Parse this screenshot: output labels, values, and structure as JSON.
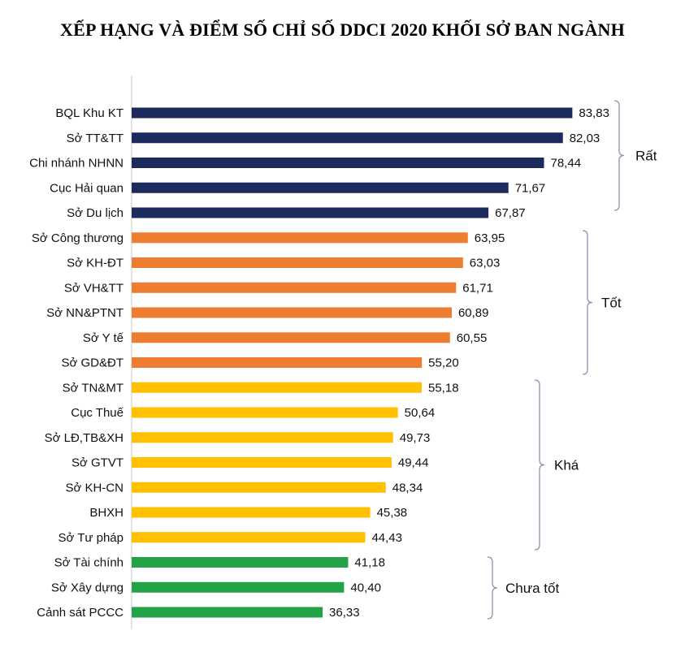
{
  "chart_data": {
    "type": "bar",
    "orientation": "horizontal",
    "title": "XẾP HẠNG VÀ ĐIỂM SỐ CHỈ SỐ DDCI 2020 KHỐI SỞ BAN NGÀNH",
    "xlim": [
      0,
      90
    ],
    "categories": [
      "BQL Khu KT",
      "Sở TT&TT",
      "Chi nhánh NHNN",
      "Cục Hải quan",
      "Sở Du lịch",
      "Sở Công thương",
      "Sở KH-ĐT",
      "Sở VH&TT",
      "Sở NN&PTNT",
      "Sở Y tế",
      "Sở GD&ĐT",
      "Sở TN&MT",
      "Cục Thuế",
      "Sở LĐ,TB&XH",
      "Sở GTVT",
      "Sở KH-CN",
      "BHXH",
      "Sở Tư pháp",
      "Sở Tài chính",
      "Sở Xây dựng",
      "Cảnh sát PCCC"
    ],
    "values": [
      83.83,
      82.03,
      78.44,
      71.67,
      67.87,
      63.95,
      63.03,
      61.71,
      60.89,
      60.55,
      55.2,
      55.18,
      50.64,
      49.73,
      49.44,
      48.34,
      45.38,
      44.43,
      41.18,
      40.4,
      36.33
    ],
    "value_labels": [
      "83,83",
      "82,03",
      "78,44",
      "71,67",
      "67,87",
      "63,95",
      "63,03",
      "61,71",
      "60,89",
      "60,55",
      "55,20",
      "55,18",
      "50,64",
      "49,73",
      "49,44",
      "48,34",
      "45,38",
      "44,43",
      "41,18",
      "40,40",
      "36,33"
    ],
    "groups": [
      {
        "name": "Rất",
        "start": 0,
        "end": 4,
        "color": "#1c2a5e"
      },
      {
        "name": "Tốt",
        "start": 5,
        "end": 10,
        "color": "#ed7d31"
      },
      {
        "name": "Khá",
        "start": 11,
        "end": 17,
        "color": "#ffc000"
      },
      {
        "name": "Chưa tốt",
        "start": 18,
        "end": 20,
        "color": "#21a346"
      }
    ]
  }
}
